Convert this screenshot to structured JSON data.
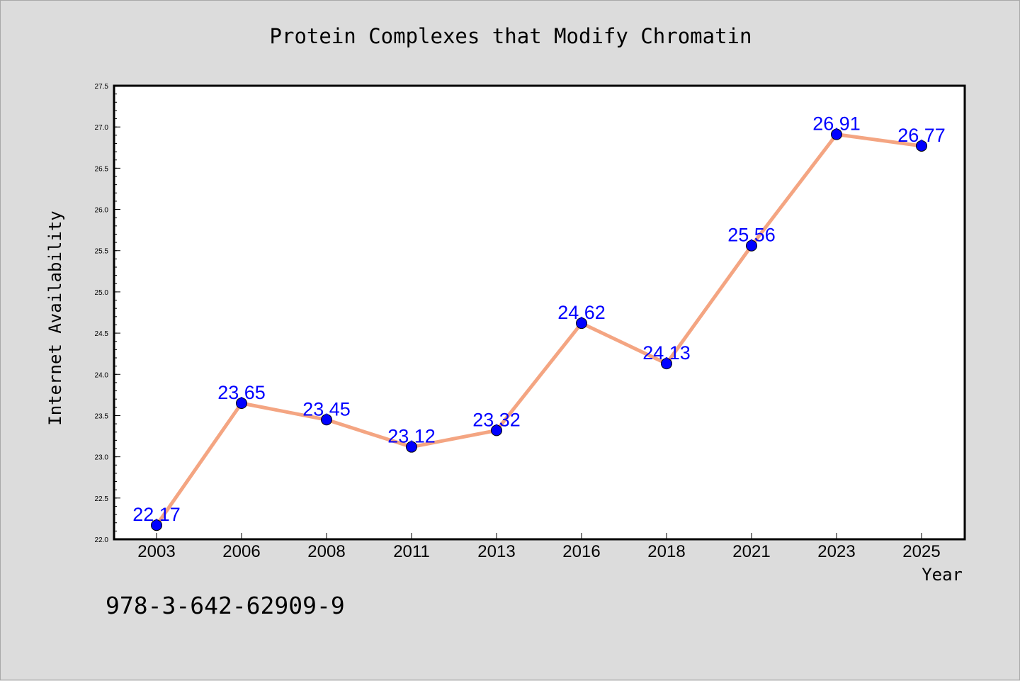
{
  "chart_data": {
    "type": "line",
    "title": "Protein Complexes that Modify Chromatin",
    "xlabel": "Year",
    "ylabel": "Internet Availability",
    "categories": [
      "2003",
      "2006",
      "2008",
      "2011",
      "2013",
      "2016",
      "2018",
      "2021",
      "2023",
      "2025"
    ],
    "series": [
      {
        "values": [
          22.17,
          23.65,
          23.45,
          23.12,
          23.32,
          24.62,
          24.13,
          25.56,
          26.91,
          26.77
        ]
      }
    ],
    "ylim": [
      22.0,
      27.5
    ],
    "yticks": [
      "22.0",
      "22.5",
      "23.0",
      "23.5",
      "24.0",
      "24.5",
      "25.0",
      "25.5",
      "26.0",
      "26.5",
      "27.0",
      "27.5"
    ],
    "data_labels": [
      "22.17",
      "23.65",
      "23.45",
      "23.12",
      "23.32",
      "24.62",
      "24.13",
      "25.56",
      "26.91",
      "26.77"
    ],
    "grid": false,
    "line_color": "#f4a582",
    "marker_color": "#0000ff",
    "label_color": "#0000ff",
    "background_color": "#dcdcdc",
    "plot_background_color": "#ffffff"
  },
  "annotation": "978-3-642-62909-9"
}
